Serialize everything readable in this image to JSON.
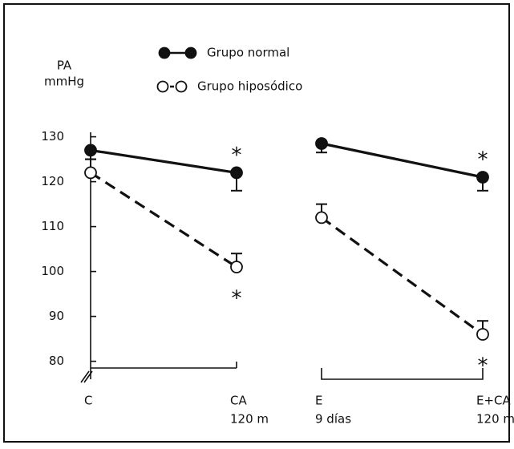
{
  "chart_data": {
    "type": "line",
    "y_label": [
      "PA",
      "mmHg"
    ],
    "ylim": [
      78.5,
      131
    ],
    "yticks": [
      80,
      90,
      100,
      110,
      120,
      130
    ],
    "categories": [
      [
        [
          "C"
        ],
        [
          "CA",
          "120 m"
        ]
      ],
      [
        [
          "E",
          "9 días"
        ],
        [
          "E+CA",
          "120 m"
        ]
      ]
    ],
    "series": [
      {
        "name": "Grupo normal",
        "color": "#111111",
        "marker": "filled",
        "dashed": false,
        "error_direction": "down",
        "values": [
          [
            127,
            122
          ],
          [
            128.5,
            121
          ]
        ],
        "errors": [
          [
            2,
            4
          ],
          [
            2,
            3
          ]
        ],
        "significance": [
          [
            null,
            "*"
          ],
          [
            null,
            "*"
          ]
        ]
      },
      {
        "name": "Grupo hiposódico",
        "color": "#111111",
        "marker": "hollow",
        "dashed": true,
        "error_direction": "up",
        "values": [
          [
            122,
            101
          ],
          [
            112,
            86
          ]
        ],
        "errors": [
          [
            3,
            3
          ],
          [
            3,
            3
          ]
        ],
        "significance": [
          [
            null,
            "*"
          ],
          [
            null,
            "*"
          ]
        ]
      }
    ]
  }
}
